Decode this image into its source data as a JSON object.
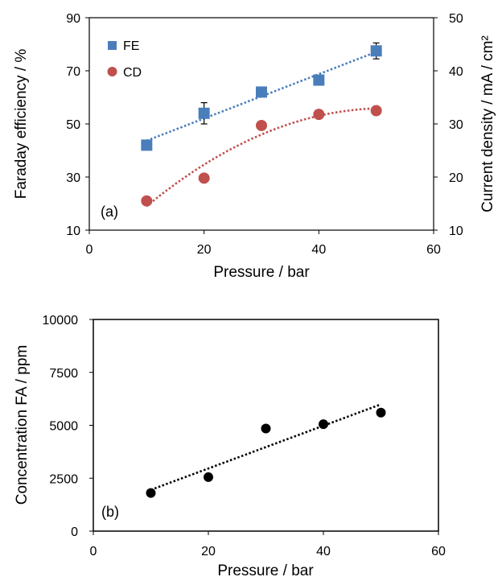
{
  "chart_data": [
    {
      "type": "scatter",
      "panel_label": "(a)",
      "xlabel": "Pressure / bar",
      "ylabel": "Faraday efficiency / %",
      "y2label": "Current density / mA / cm²",
      "xlim": [
        0,
        60
      ],
      "xticks": [
        "0",
        "20",
        "40",
        "60"
      ],
      "ylim": [
        10,
        90
      ],
      "yticks": [
        "10",
        "30",
        "50",
        "70",
        "90"
      ],
      "y2lim": [
        10,
        50
      ],
      "y2ticks": [
        "10",
        "20",
        "30",
        "40",
        "50"
      ],
      "grid": false,
      "legend_position": "top-left",
      "series": [
        {
          "name": "FE",
          "axis": "left",
          "marker": "square",
          "color": "#4a7ebb",
          "x": [
            10,
            20,
            30,
            40,
            50
          ],
          "y": [
            42,
            54,
            62,
            66.5,
            77.5
          ],
          "error": [
            0,
            4,
            0,
            0,
            3
          ],
          "trend_color": "#4a7ebb"
        },
        {
          "name": "CD",
          "axis": "right",
          "marker": "circle",
          "color": "#c0504d",
          "x": [
            10,
            20,
            30,
            40,
            50
          ],
          "y": [
            15.5,
            19.8,
            29.7,
            31.8,
            32.5
          ],
          "error": [
            0,
            0,
            0,
            0,
            0
          ],
          "trend_color": "#c0504d"
        }
      ]
    },
    {
      "type": "scatter",
      "panel_label": "(b)",
      "xlabel": "Pressure / bar",
      "ylabel": "Concentration FA / ppm",
      "xlim": [
        0,
        60
      ],
      "xticks": [
        "0",
        "20",
        "40",
        "60"
      ],
      "ylim": [
        0,
        10000
      ],
      "yticks": [
        "0",
        "2500",
        "5000",
        "7500",
        "10000"
      ],
      "grid": false,
      "series": [
        {
          "name": "",
          "marker": "circle",
          "color": "#000000",
          "x": [
            10,
            20,
            30,
            40,
            50
          ],
          "y": [
            1800,
            2550,
            4850,
            5050,
            5600
          ],
          "trend_color": "#000000"
        }
      ]
    }
  ]
}
